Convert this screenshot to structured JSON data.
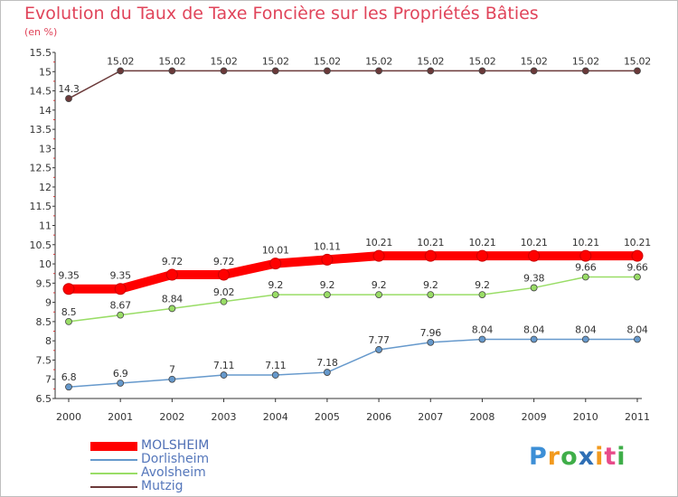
{
  "header": {
    "title": "Evolution du Taux de Taxe Foncière sur les Propriétés Bâties",
    "unit": "(en %)"
  },
  "brand": {
    "letters": [
      "P",
      "r",
      "o",
      "x",
      "i",
      "t",
      "i"
    ],
    "colors": [
      "#3d8fd6",
      "#f29a1e",
      "#3fae49",
      "#2f6fb5",
      "#f29a1e",
      "#e84b8a",
      "#3fae49"
    ]
  },
  "chart_data": {
    "type": "line",
    "x": [
      "2000",
      "2001",
      "2002",
      "2003",
      "2004",
      "2005",
      "2006",
      "2007",
      "2008",
      "2009",
      "2010",
      "2011"
    ],
    "ylim": [
      6.5,
      15.5
    ],
    "yticks": [
      "6.5",
      "7",
      "7.5",
      "8",
      "8.5",
      "9",
      "9.5",
      "10",
      "10.5",
      "11",
      "11.5",
      "12",
      "12.5",
      "13",
      "13.5",
      "14",
      "14.5",
      "15",
      "15.5"
    ],
    "grid": false,
    "legend_position": "bottom-left",
    "series": [
      {
        "name": "MOLSHEIM",
        "color": "#ff0000",
        "values": [
          9.35,
          9.35,
          9.72,
          9.72,
          10.01,
          10.11,
          10.21,
          10.21,
          10.21,
          10.21,
          10.21,
          10.21
        ],
        "labels": [
          "9.35",
          "9.35",
          "9.72",
          "9.72",
          "10.01",
          "10.11",
          "10.21",
          "10.21",
          "10.21",
          "10.21",
          "10.21",
          "10.21"
        ]
      },
      {
        "name": "Dorlisheim",
        "color": "#6699cc",
        "values": [
          6.8,
          6.9,
          7.0,
          7.11,
          7.11,
          7.18,
          7.77,
          7.96,
          8.04,
          8.04,
          8.04,
          8.04
        ],
        "labels": [
          "6.8",
          "6.9",
          "7",
          "7.11",
          "7.11",
          "7.18",
          "7.77",
          "7.96",
          "8.04",
          "8.04",
          "8.04",
          "8.04"
        ]
      },
      {
        "name": "Avolsheim",
        "color": "#99dd66",
        "values": [
          8.5,
          8.67,
          8.84,
          9.02,
          9.2,
          9.2,
          9.2,
          9.2,
          9.2,
          9.38,
          9.66,
          9.66
        ],
        "labels": [
          "8.5",
          "8.67",
          "8.84",
          "9.02",
          "9.2",
          "9.2",
          "9.2",
          "9.2",
          "9.2",
          "9.38",
          "9.66",
          "9.66"
        ]
      },
      {
        "name": "Mutzig",
        "color": "#6b3a3a",
        "values": [
          14.3,
          15.02,
          15.02,
          15.02,
          15.02,
          15.02,
          15.02,
          15.02,
          15.02,
          15.02,
          15.02,
          15.02
        ],
        "labels": [
          "14.3",
          "15.02",
          "15.02",
          "15.02",
          "15.02",
          "15.02",
          "15.02",
          "15.02",
          "15.02",
          "15.02",
          "15.02",
          "15.02"
        ]
      }
    ]
  }
}
